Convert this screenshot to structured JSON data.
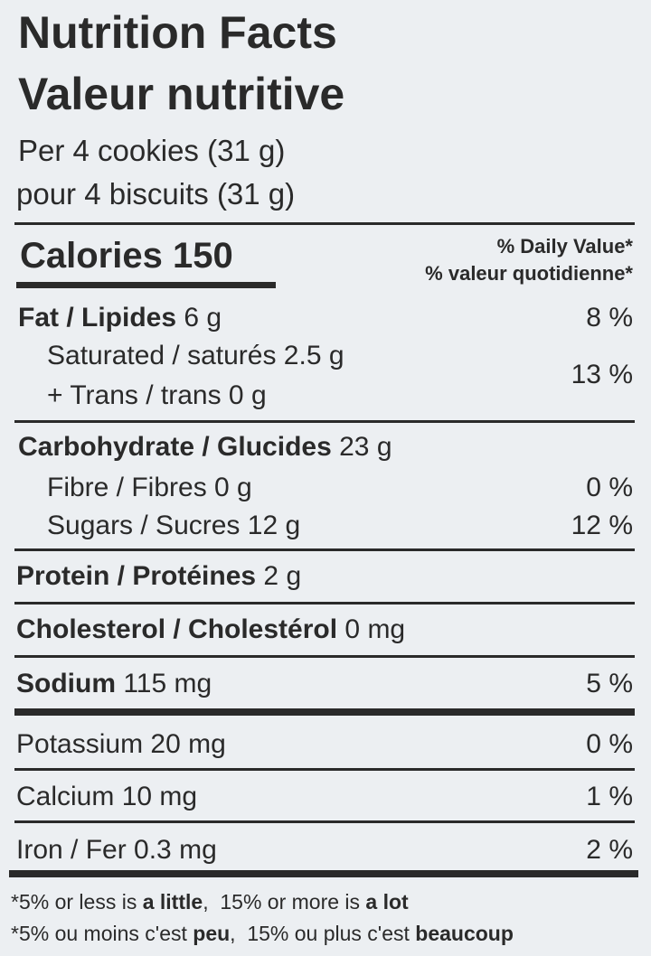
{
  "title_en": "Nutrition Facts",
  "title_fr": "Valeur nutritive",
  "serving_en": "Per 4 cookies (31 g)",
  "serving_fr": "pour 4 biscuits (31 g)",
  "calories": "Calories 150",
  "dv_en": "% Daily Value*",
  "dv_fr": "% valeur quotidienne*",
  "nutrients": {
    "fat": {
      "label": "Fat / Lipides",
      "amount": "6 g",
      "dv": "8 %"
    },
    "saturated": {
      "label": "Saturated / saturés 2.5 g"
    },
    "trans": {
      "label": "+ Trans / trans 0 g",
      "dv": "13 %"
    },
    "carb": {
      "label": "Carbohydrate / Glucides",
      "amount": "23 g"
    },
    "fibre": {
      "label": "Fibre / Fibres 0 g",
      "dv": "0 %"
    },
    "sugars": {
      "label": "Sugars / Sucres 12 g",
      "dv": "12 %"
    },
    "protein": {
      "label": "Protein / Protéines",
      "amount": "2 g"
    },
    "cholesterol": {
      "label": "Cholesterol / Cholestérol",
      "amount": "0 mg"
    },
    "sodium": {
      "label": "Sodium",
      "amount": "115 mg",
      "dv": "5 %"
    },
    "potassium": {
      "label": "Potassium 20 mg",
      "dv": "0 %"
    },
    "calcium": {
      "label": "Calcium 10 mg",
      "dv": "1 %"
    },
    "iron": {
      "label": "Iron / Fer 0.3 mg",
      "dv": "2 %"
    }
  },
  "footnote_en": {
    "a": "*5% or less is ",
    "b": "a little",
    "c": ",  15% or more is ",
    "d": "a lot"
  },
  "footnote_fr": {
    "a": "*5% ou moins c'est ",
    "b": "peu",
    "c": ",  15% ou plus c'est ",
    "d": "beaucoup"
  }
}
